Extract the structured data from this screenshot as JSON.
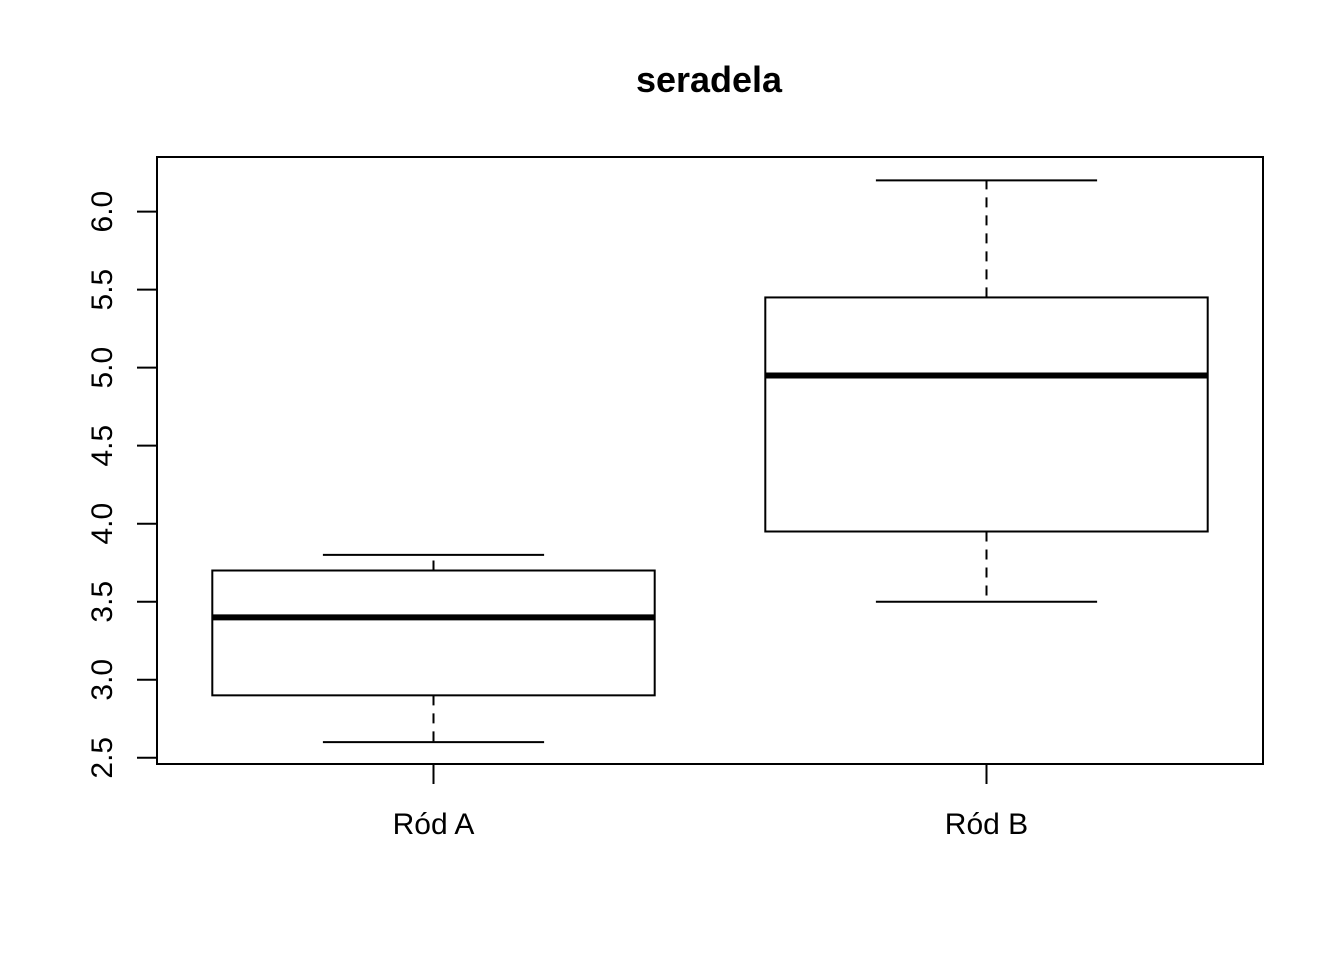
{
  "chart_data": {
    "type": "boxplot",
    "title": "seradela",
    "xlabel": "",
    "ylabel": "",
    "categories": [
      "Ród A",
      "Ród B"
    ],
    "boxes": [
      {
        "category": "Ród A",
        "min": 2.6,
        "q1": 2.9,
        "median": 3.4,
        "q3": 3.7,
        "max": 3.8
      },
      {
        "category": "Ród B",
        "min": 3.5,
        "q1": 3.95,
        "median": 4.95,
        "q3": 5.45,
        "max": 6.2
      }
    ],
    "yticks": [
      "2.5",
      "3.0",
      "3.5",
      "4.0",
      "4.5",
      "5.0",
      "5.5",
      "6.0"
    ],
    "ylim": [
      2.46,
      6.35
    ],
    "grid": false,
    "legend": "none"
  }
}
